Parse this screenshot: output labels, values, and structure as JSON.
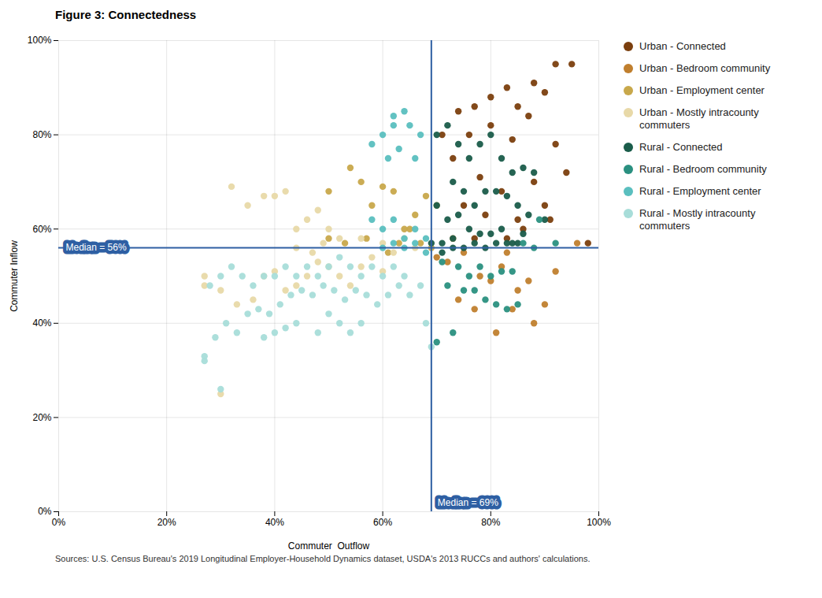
{
  "chart_data": {
    "type": "scatter",
    "title": "Figure 3: Connectedness",
    "xlabel": "Commuter  Outflow",
    "ylabel": "Commuter Inflow",
    "caption": "Sources: U.S. Census Bureau's 2019 Longitudinal Employer-Household Dynamics dataset, USDA's 2013 RUCCs and authors' calculations.",
    "xlim": [
      0,
      1.0
    ],
    "ylim": [
      0,
      1.0
    ],
    "xticks": [
      {
        "value": 0,
        "label": "0%"
      },
      {
        "value": 0.2,
        "label": "20%"
      },
      {
        "value": 0.4,
        "label": "40%"
      },
      {
        "value": 0.6,
        "label": "60%"
      },
      {
        "value": 0.8,
        "label": "80%"
      },
      {
        "value": 1.0,
        "label": "100%"
      }
    ],
    "yticks": [
      {
        "value": 0,
        "label": "0%"
      },
      {
        "value": 0.2,
        "label": "20%"
      },
      {
        "value": 0.4,
        "label": "40%"
      },
      {
        "value": 0.6,
        "label": "60%"
      },
      {
        "value": 0.8,
        "label": "80%"
      },
      {
        "value": 1.0,
        "label": "100%"
      }
    ],
    "grid": true,
    "legend": "right",
    "annotations": [
      {
        "axis": "x",
        "value": 0.69,
        "label": "Median = 69%",
        "color": "#2e5fa3"
      },
      {
        "axis": "y",
        "value": 0.56,
        "label": "Median = 56%",
        "color": "#2e5fa3"
      }
    ],
    "series": [
      {
        "name": "Urban - Connected",
        "color": "#7b3f0e",
        "points": [
          [
            0.71,
            0.8
          ],
          [
            0.74,
            0.85
          ],
          [
            0.77,
            0.86
          ],
          [
            0.8,
            0.88
          ],
          [
            0.83,
            0.9
          ],
          [
            0.85,
            0.86
          ],
          [
            0.88,
            0.91
          ],
          [
            0.9,
            0.89
          ],
          [
            0.92,
            0.95
          ],
          [
            0.95,
            0.95
          ],
          [
            0.73,
            0.75
          ],
          [
            0.76,
            0.8
          ],
          [
            0.8,
            0.82
          ],
          [
            0.84,
            0.79
          ],
          [
            0.87,
            0.84
          ],
          [
            0.78,
            0.71
          ],
          [
            0.82,
            0.68
          ],
          [
            0.75,
            0.65
          ],
          [
            0.88,
            0.7
          ],
          [
            0.92,
            0.78
          ],
          [
            0.79,
            0.63
          ],
          [
            0.85,
            0.62
          ],
          [
            0.9,
            0.65
          ],
          [
            0.94,
            0.72
          ],
          [
            0.98,
            0.57
          ],
          [
            0.83,
            0.58
          ],
          [
            0.86,
            0.6
          ],
          [
            0.77,
            0.58
          ],
          [
            0.91,
            0.62
          ]
        ]
      },
      {
        "name": "Urban - Bedroom community",
        "color": "#c07f2e",
        "points": [
          [
            0.72,
            0.53
          ],
          [
            0.75,
            0.55
          ],
          [
            0.78,
            0.5
          ],
          [
            0.8,
            0.49
          ],
          [
            0.82,
            0.52
          ],
          [
            0.85,
            0.47
          ],
          [
            0.88,
            0.4
          ],
          [
            0.9,
            0.44
          ],
          [
            0.74,
            0.45
          ],
          [
            0.77,
            0.43
          ],
          [
            0.81,
            0.38
          ],
          [
            0.84,
            0.43
          ],
          [
            0.87,
            0.49
          ],
          [
            0.92,
            0.51
          ],
          [
            0.96,
            0.57
          ],
          [
            0.7,
            0.54
          ],
          [
            0.73,
            0.58
          ],
          [
            0.83,
            0.55
          ]
        ]
      },
      {
        "name": "Urban - Employment center",
        "color": "#c8a84b",
        "points": [
          [
            0.5,
            0.68
          ],
          [
            0.53,
            0.57
          ],
          [
            0.56,
            0.7
          ],
          [
            0.58,
            0.65
          ],
          [
            0.6,
            0.69
          ],
          [
            0.62,
            0.68
          ],
          [
            0.64,
            0.6
          ],
          [
            0.66,
            0.63
          ],
          [
            0.68,
            0.67
          ],
          [
            0.7,
            0.65
          ],
          [
            0.5,
            0.58
          ],
          [
            0.54,
            0.73
          ],
          [
            0.57,
            0.58
          ],
          [
            0.61,
            0.55
          ],
          [
            0.63,
            0.57
          ],
          [
            0.65,
            0.6
          ],
          [
            0.67,
            0.57
          ],
          [
            0.69,
            0.56
          ]
        ]
      },
      {
        "name": "Urban - Mostly intracounty\ncommuters",
        "color": "#e8d9a8",
        "points": [
          [
            0.27,
            0.5
          ],
          [
            0.3,
            0.47
          ],
          [
            0.33,
            0.44
          ],
          [
            0.36,
            0.45
          ],
          [
            0.38,
            0.5
          ],
          [
            0.4,
            0.51
          ],
          [
            0.42,
            0.47
          ],
          [
            0.44,
            0.48
          ],
          [
            0.46,
            0.5
          ],
          [
            0.48,
            0.53
          ],
          [
            0.5,
            0.52
          ],
          [
            0.52,
            0.5
          ],
          [
            0.54,
            0.48
          ],
          [
            0.56,
            0.52
          ],
          [
            0.58,
            0.54
          ],
          [
            0.6,
            0.51
          ],
          [
            0.62,
            0.55
          ],
          [
            0.64,
            0.58
          ],
          [
            0.66,
            0.56
          ],
          [
            0.32,
            0.69
          ],
          [
            0.35,
            0.65
          ],
          [
            0.38,
            0.67
          ],
          [
            0.4,
            0.67
          ],
          [
            0.42,
            0.68
          ],
          [
            0.44,
            0.6
          ],
          [
            0.46,
            0.62
          ],
          [
            0.48,
            0.64
          ],
          [
            0.5,
            0.6
          ],
          [
            0.52,
            0.58
          ],
          [
            0.56,
            0.58
          ],
          [
            0.6,
            0.57
          ],
          [
            0.44,
            0.56
          ],
          [
            0.47,
            0.55
          ],
          [
            0.49,
            0.57
          ],
          [
            0.27,
            0.48
          ],
          [
            0.3,
            0.25
          ]
        ]
      },
      {
        "name": "Rural - Connected",
        "color": "#1a5c4a",
        "points": [
          [
            0.7,
            0.8
          ],
          [
            0.72,
            0.82
          ],
          [
            0.74,
            0.78
          ],
          [
            0.76,
            0.75
          ],
          [
            0.78,
            0.78
          ],
          [
            0.8,
            0.8
          ],
          [
            0.82,
            0.75
          ],
          [
            0.84,
            0.72
          ],
          [
            0.86,
            0.73
          ],
          [
            0.88,
            0.72
          ],
          [
            0.9,
            0.62
          ],
          [
            0.73,
            0.7
          ],
          [
            0.75,
            0.68
          ],
          [
            0.77,
            0.65
          ],
          [
            0.79,
            0.68
          ],
          [
            0.81,
            0.68
          ],
          [
            0.83,
            0.67
          ],
          [
            0.85,
            0.65
          ],
          [
            0.87,
            0.63
          ],
          [
            0.7,
            0.65
          ],
          [
            0.72,
            0.62
          ],
          [
            0.74,
            0.63
          ],
          [
            0.76,
            0.6
          ],
          [
            0.78,
            0.59
          ],
          [
            0.8,
            0.59
          ],
          [
            0.82,
            0.6
          ],
          [
            0.84,
            0.57
          ],
          [
            0.86,
            0.59
          ],
          [
            0.71,
            0.57
          ],
          [
            0.73,
            0.58
          ],
          [
            0.75,
            0.56
          ],
          [
            0.77,
            0.57
          ],
          [
            0.79,
            0.56
          ],
          [
            0.81,
            0.57
          ],
          [
            0.83,
            0.57
          ],
          [
            0.85,
            0.57
          ],
          [
            0.69,
            0.57
          ],
          [
            0.71,
            0.55
          ],
          [
            0.73,
            0.56
          ]
        ]
      },
      {
        "name": "Rural - Bedroom community",
        "color": "#2a9080",
        "points": [
          [
            0.71,
            0.53
          ],
          [
            0.74,
            0.52
          ],
          [
            0.76,
            0.5
          ],
          [
            0.78,
            0.52
          ],
          [
            0.8,
            0.5
          ],
          [
            0.82,
            0.51
          ],
          [
            0.84,
            0.51
          ],
          [
            0.72,
            0.48
          ],
          [
            0.75,
            0.47
          ],
          [
            0.77,
            0.47
          ],
          [
            0.79,
            0.45
          ],
          [
            0.81,
            0.44
          ],
          [
            0.83,
            0.43
          ],
          [
            0.85,
            0.44
          ],
          [
            0.7,
            0.36
          ],
          [
            0.73,
            0.38
          ],
          [
            0.86,
            0.57
          ],
          [
            0.88,
            0.56
          ],
          [
            0.89,
            0.62
          ],
          [
            0.92,
            0.57
          ]
        ]
      },
      {
        "name": "Rural - Employment center",
        "color": "#5abfbf",
        "points": [
          [
            0.58,
            0.62
          ],
          [
            0.6,
            0.6
          ],
          [
            0.62,
            0.62
          ],
          [
            0.64,
            0.58
          ],
          [
            0.66,
            0.6
          ],
          [
            0.68,
            0.58
          ],
          [
            0.6,
            0.56
          ],
          [
            0.62,
            0.57
          ],
          [
            0.64,
            0.56
          ],
          [
            0.66,
            0.57
          ],
          [
            0.68,
            0.55
          ],
          [
            0.65,
            0.82
          ],
          [
            0.67,
            0.8
          ],
          [
            0.62,
            0.84
          ],
          [
            0.64,
            0.85
          ],
          [
            0.6,
            0.8
          ],
          [
            0.62,
            0.82
          ],
          [
            0.58,
            0.78
          ],
          [
            0.66,
            0.75
          ],
          [
            0.63,
            0.77
          ],
          [
            0.61,
            0.75
          ]
        ]
      },
      {
        "name": "Rural - Mostly intracounty\ncommuters",
        "color": "#a8ddd9",
        "points": [
          [
            0.27,
            0.33
          ],
          [
            0.29,
            0.37
          ],
          [
            0.31,
            0.4
          ],
          [
            0.33,
            0.38
          ],
          [
            0.35,
            0.42
          ],
          [
            0.37,
            0.43
          ],
          [
            0.39,
            0.42
          ],
          [
            0.41,
            0.44
          ],
          [
            0.43,
            0.46
          ],
          [
            0.45,
            0.47
          ],
          [
            0.47,
            0.46
          ],
          [
            0.49,
            0.48
          ],
          [
            0.51,
            0.47
          ],
          [
            0.53,
            0.45
          ],
          [
            0.55,
            0.47
          ],
          [
            0.57,
            0.46
          ],
          [
            0.59,
            0.44
          ],
          [
            0.61,
            0.46
          ],
          [
            0.63,
            0.48
          ],
          [
            0.65,
            0.46
          ],
          [
            0.67,
            0.48
          ],
          [
            0.28,
            0.48
          ],
          [
            0.3,
            0.5
          ],
          [
            0.32,
            0.52
          ],
          [
            0.34,
            0.5
          ],
          [
            0.36,
            0.48
          ],
          [
            0.38,
            0.5
          ],
          [
            0.4,
            0.5
          ],
          [
            0.42,
            0.52
          ],
          [
            0.44,
            0.5
          ],
          [
            0.46,
            0.52
          ],
          [
            0.48,
            0.5
          ],
          [
            0.5,
            0.52
          ],
          [
            0.52,
            0.54
          ],
          [
            0.54,
            0.52
          ],
          [
            0.56,
            0.5
          ],
          [
            0.58,
            0.52
          ],
          [
            0.6,
            0.5
          ],
          [
            0.62,
            0.52
          ],
          [
            0.64,
            0.5
          ],
          [
            0.38,
            0.37
          ],
          [
            0.4,
            0.38
          ],
          [
            0.42,
            0.39
          ],
          [
            0.44,
            0.4
          ],
          [
            0.3,
            0.26
          ],
          [
            0.48,
            0.38
          ],
          [
            0.5,
            0.42
          ],
          [
            0.52,
            0.4
          ],
          [
            0.54,
            0.38
          ],
          [
            0.56,
            0.4
          ],
          [
            0.27,
            0.32
          ],
          [
            0.69,
            0.35
          ],
          [
            0.68,
            0.4
          ]
        ]
      }
    ]
  }
}
